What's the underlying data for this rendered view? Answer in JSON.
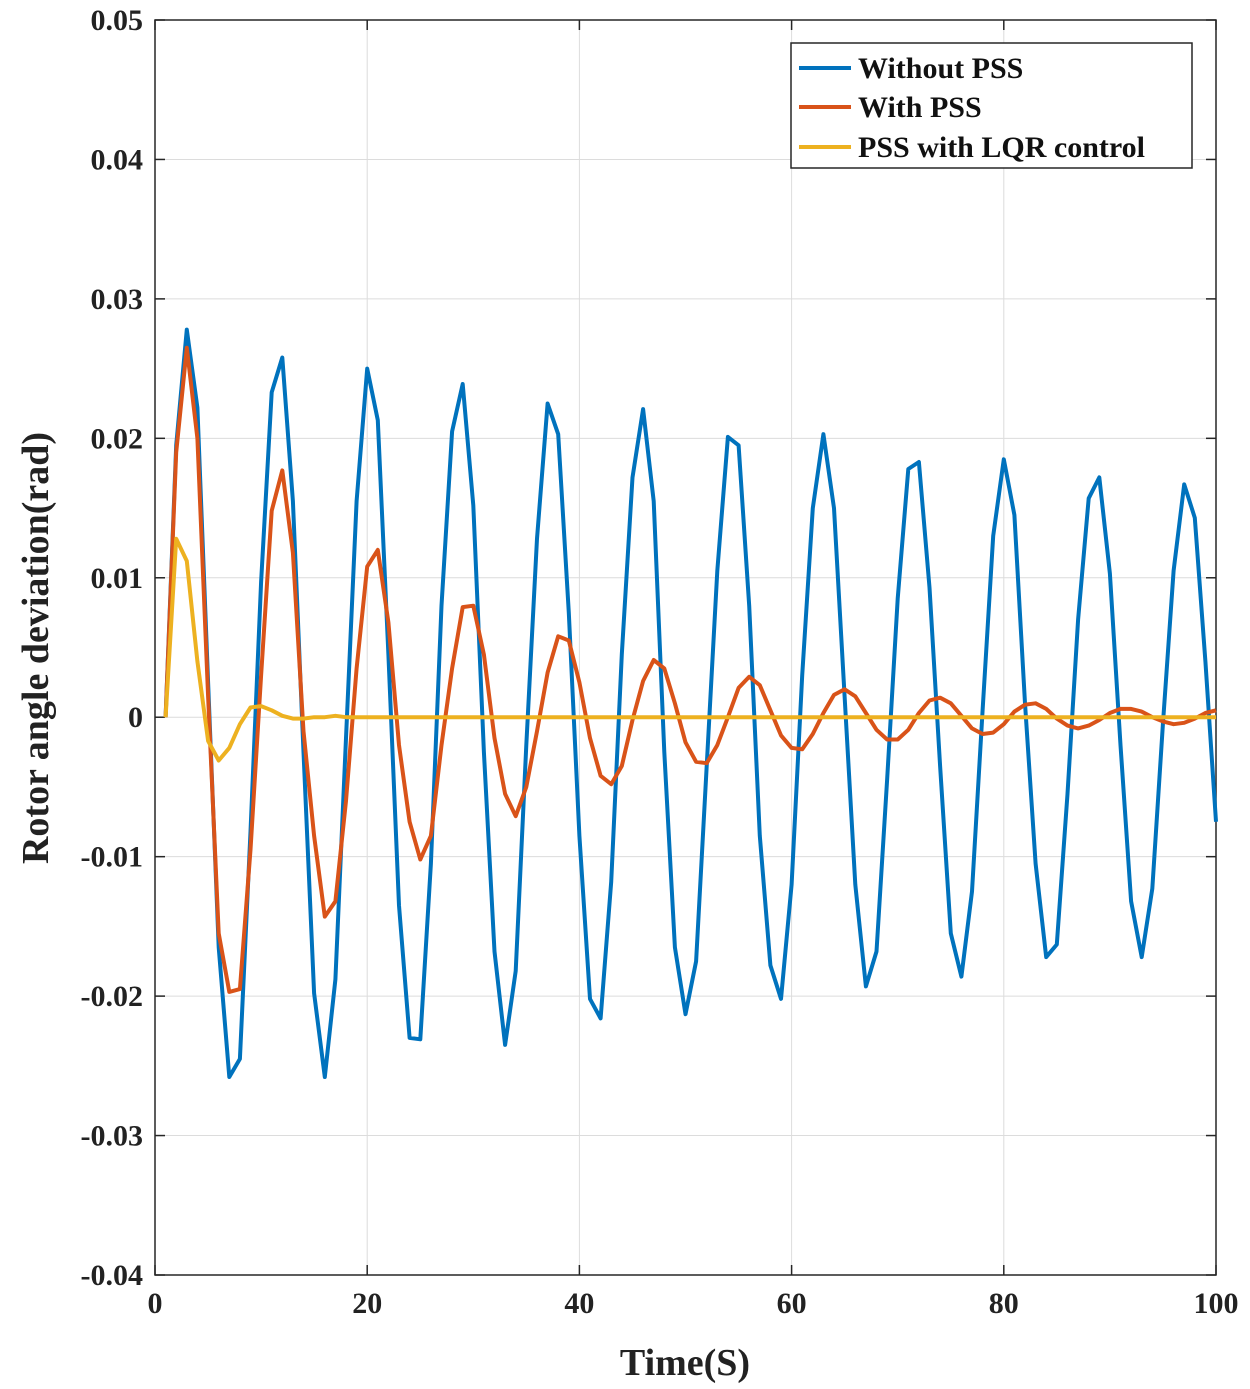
{
  "chart_data": {
    "type": "line",
    "title": "",
    "xlabel": "Time(S)",
    "ylabel": "Rotor angle deviation(rad)",
    "xlim": [
      0,
      100
    ],
    "ylim": [
      -0.04,
      0.05
    ],
    "grid": true,
    "legend_position": "top-right",
    "xticks": [
      0,
      20,
      40,
      60,
      80,
      100
    ],
    "xtick_labels": [
      "0",
      "20",
      "40",
      "60",
      "80",
      "100"
    ],
    "yticks": [
      -0.04,
      -0.03,
      -0.02,
      -0.01,
      0,
      0.01,
      0.02,
      0.03,
      0.04,
      0.05
    ],
    "ytick_labels": [
      "-0.04",
      "-0.03",
      "-0.02",
      "-0.01",
      "0",
      "0.01",
      "0.02",
      "0.03",
      "0.04",
      "0.05"
    ],
    "series": [
      {
        "name": "Without PSS",
        "color": "#0072BD",
        "x": [
          1,
          2,
          3,
          4,
          5,
          6,
          7,
          8,
          9,
          10,
          11,
          12,
          13,
          14,
          15,
          16,
          17,
          18,
          19,
          20,
          21,
          22,
          23,
          24,
          25,
          26,
          27,
          28,
          29,
          30,
          31,
          32,
          33,
          34,
          35,
          36,
          37,
          38,
          39,
          40,
          41,
          42,
          43,
          44,
          45,
          46,
          47,
          48,
          49,
          50,
          51,
          52,
          53,
          54,
          55,
          56,
          57,
          58,
          59,
          60,
          61,
          62,
          63,
          64,
          65,
          66,
          67,
          68,
          69,
          70,
          71,
          72,
          73,
          74,
          75,
          76,
          77,
          78,
          79,
          80,
          81,
          82,
          83,
          84,
          85,
          86,
          87,
          88,
          89,
          90,
          91,
          92,
          93,
          94,
          95,
          96,
          97,
          98,
          99,
          100
        ],
        "y": [
          0,
          0.0195,
          0.0278,
          0.0222,
          0.0025,
          -0.0165,
          -0.0258,
          -0.0245,
          -0.0082,
          0.0097,
          0.0233,
          0.0258,
          0.0155,
          -0.0025,
          -0.0198,
          -0.0258,
          -0.0188,
          -0.0015,
          0.0155,
          0.025,
          0.0213,
          0.0045,
          -0.0135,
          -0.023,
          -0.0231,
          -0.0105,
          0.008,
          0.0205,
          0.0239,
          0.0152,
          -0.0025,
          -0.0168,
          -0.0235,
          -0.0182,
          -0.002,
          0.0128,
          0.0225,
          0.0203,
          0.0075,
          -0.0085,
          -0.0202,
          -0.0216,
          -0.0118,
          0.0045,
          0.0172,
          0.0221,
          0.0155,
          -0.0025,
          -0.0165,
          -0.0213,
          -0.0175,
          -0.0035,
          0.0105,
          0.0201,
          0.0195,
          0.008,
          -0.0085,
          -0.0178,
          -0.0202,
          -0.012,
          0.003,
          0.015,
          0.0203,
          0.015,
          0.0015,
          -0.012,
          -0.0193,
          -0.0168,
          -0.0045,
          0.0085,
          0.0178,
          0.0183,
          0.0093,
          -0.0035,
          -0.0155,
          -0.0186,
          -0.0125,
          0.0005,
          0.013,
          0.0185,
          0.0145,
          0.001,
          -0.0105,
          -0.0172,
          -0.0163,
          -0.0055,
          0.007,
          0.0157,
          0.0172,
          0.0103,
          -0.002,
          -0.0132,
          -0.0172,
          -0.0123,
          -0.0005,
          0.0105,
          0.0167,
          0.0143,
          0.004,
          -0.0075
        ]
      },
      {
        "name": "With PSS",
        "color": "#D95319",
        "x": [
          1,
          2,
          3,
          4,
          5,
          6,
          7,
          8,
          9,
          10,
          11,
          12,
          13,
          14,
          15,
          16,
          17,
          18,
          19,
          20,
          21,
          22,
          23,
          24,
          25,
          26,
          27,
          28,
          29,
          30,
          31,
          32,
          33,
          34,
          35,
          36,
          37,
          38,
          39,
          40,
          41,
          42,
          43,
          44,
          45,
          46,
          47,
          48,
          49,
          50,
          51,
          52,
          53,
          54,
          55,
          56,
          57,
          58,
          59,
          60,
          61,
          62,
          63,
          64,
          65,
          66,
          67,
          68,
          69,
          70,
          71,
          72,
          73,
          74,
          75,
          76,
          77,
          78,
          79,
          80,
          81,
          82,
          83,
          84,
          85,
          86,
          87,
          88,
          89,
          90,
          91,
          92,
          93,
          94,
          95,
          96,
          97,
          98,
          99,
          100
        ],
        "y": [
          0,
          0.019,
          0.0265,
          0.02,
          0.0015,
          -0.0155,
          -0.0197,
          -0.0195,
          -0.0095,
          0.003,
          0.0148,
          0.0177,
          0.0118,
          -0.001,
          -0.0085,
          -0.0143,
          -0.0132,
          -0.006,
          0.0035,
          0.0108,
          0.012,
          0.0068,
          -0.002,
          -0.0075,
          -0.0102,
          -0.0085,
          -0.002,
          0.0035,
          0.0079,
          0.008,
          0.0045,
          -0.0015,
          -0.0055,
          -0.0071,
          -0.005,
          -0.001,
          0.0032,
          0.0058,
          0.0055,
          0.0025,
          -0.0015,
          -0.0042,
          -0.0048,
          -0.0035,
          -0.0002,
          0.0026,
          0.0041,
          0.0035,
          0.001,
          -0.0018,
          -0.0032,
          -0.0033,
          -0.002,
          0,
          0.0021,
          0.0029,
          0.0023,
          0.0005,
          -0.0013,
          -0.0022,
          -0.0023,
          -0.0012,
          0.0003,
          0.0016,
          0.002,
          0.0015,
          0.0003,
          -0.0009,
          -0.0016,
          -0.0016,
          -0.0009,
          0.0003,
          0.0012,
          0.0014,
          0.001,
          0.0001,
          -0.0008,
          -0.0012,
          -0.0011,
          -0.0005,
          0.0004,
          0.0009,
          0.001,
          0.0006,
          -0.0001,
          -0.0006,
          -0.0008,
          -0.0006,
          -0.0002,
          0.0003,
          0.0006,
          0.0006,
          0.0004,
          0,
          -0.0003,
          -0.0005,
          -0.0004,
          -0.0001,
          0.0003,
          0.0005
        ]
      },
      {
        "name": "PSS with LQR control",
        "color": "#EDB120",
        "x": [
          1,
          2,
          3,
          4,
          5,
          6,
          7,
          8,
          9,
          10,
          11,
          12,
          13,
          14,
          15,
          16,
          17,
          18,
          19,
          20,
          25,
          30,
          35,
          40,
          45,
          50,
          55,
          60,
          65,
          70,
          75,
          80,
          85,
          90,
          95,
          100
        ],
        "y": [
          0,
          0.0128,
          0.0112,
          0.004,
          -0.0017,
          -0.0031,
          -0.0022,
          -0.0005,
          0.0007,
          0.0008,
          0.0005,
          0.0001,
          -0.0001,
          -0.0001,
          0,
          0,
          0.0001,
          0,
          0,
          0,
          0,
          0,
          0,
          0,
          0,
          0,
          0,
          0,
          0,
          0,
          0,
          0,
          0,
          0,
          0,
          0
        ]
      }
    ]
  }
}
